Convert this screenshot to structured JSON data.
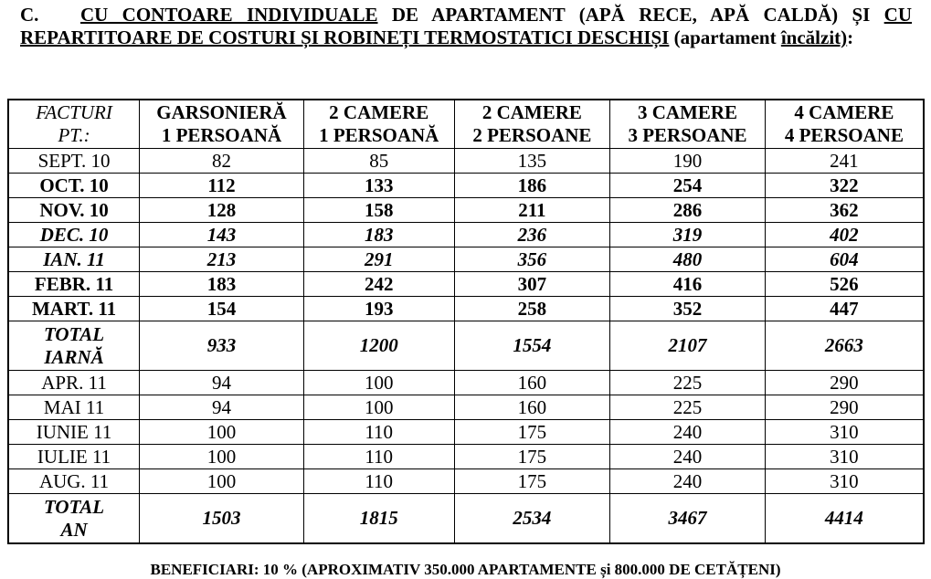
{
  "heading": {
    "label": "C.",
    "part1_underlined": "CU CONTOARE INDIVIDUALE",
    "part2": " DE APARTAMENT (APĂ RECE, APĂ CALDĂ) ȘI ",
    "part3_underlined": "CU REPARTITOARE DE COSTURI ȘI ROBINEȚI TERMOSTATICI DESCHIȘI",
    "part4": " (apartament ",
    "part5_underlined": "încălzit)",
    "part6": ":"
  },
  "table": {
    "headers": [
      [
        "FACTURI",
        "PT.:"
      ],
      [
        "GARSONIERĂ",
        "1 PERSOANĂ"
      ],
      [
        "2 CAMERE",
        "1 PERSOANĂ"
      ],
      [
        "2 CAMERE",
        "2 PERSOANE"
      ],
      [
        "3 CAMERE",
        "3 PERSOANE"
      ],
      [
        "4 CAMERE",
        "4 PERSOANE"
      ]
    ],
    "rows": [
      {
        "style": "normal",
        "label": [
          "SEPT. 10"
        ],
        "values": [
          "82",
          "85",
          "135",
          "190",
          "241"
        ]
      },
      {
        "style": "bold",
        "label": [
          "OCT. 10"
        ],
        "values": [
          "112",
          "133",
          "186",
          "254",
          "322"
        ]
      },
      {
        "style": "bold",
        "label": [
          "NOV. 10"
        ],
        "values": [
          "128",
          "158",
          "211",
          "286",
          "362"
        ]
      },
      {
        "style": "bold-italic",
        "label": [
          "DEC. 10"
        ],
        "values": [
          "143",
          "183",
          "236",
          "319",
          "402"
        ]
      },
      {
        "style": "bold-italic",
        "label": [
          "IAN. 11"
        ],
        "values": [
          "213",
          "291",
          "356",
          "480",
          "604"
        ]
      },
      {
        "style": "bold",
        "label": [
          "FEBR. 11"
        ],
        "values": [
          "183",
          "242",
          "307",
          "416",
          "526"
        ]
      },
      {
        "style": "bold",
        "label": [
          "MART. 11"
        ],
        "values": [
          "154",
          "193",
          "258",
          "352",
          "447"
        ]
      },
      {
        "style": "bold-italic",
        "label": [
          "TOTAL",
          "IARNĂ"
        ],
        "values": [
          "933",
          "1200",
          "1554",
          "2107",
          "2663"
        ]
      },
      {
        "style": "normal",
        "label": [
          "APR. 11"
        ],
        "values": [
          "94",
          "100",
          "160",
          "225",
          "290"
        ]
      },
      {
        "style": "normal",
        "label": [
          "MAI 11"
        ],
        "values": [
          "94",
          "100",
          "160",
          "225",
          "290"
        ]
      },
      {
        "style": "normal",
        "label": [
          "IUNIE 11"
        ],
        "values": [
          "100",
          "110",
          "175",
          "240",
          "310"
        ]
      },
      {
        "style": "normal",
        "label": [
          "IULIE 11"
        ],
        "values": [
          "100",
          "110",
          "175",
          "240",
          "310"
        ]
      },
      {
        "style": "normal",
        "label": [
          "AUG. 11"
        ],
        "values": [
          "100",
          "110",
          "175",
          "240",
          "310"
        ]
      },
      {
        "style": "bold-italic",
        "label": [
          "TOTAL",
          "AN"
        ],
        "values": [
          "1503",
          "1815",
          "2534",
          "3467",
          "4414"
        ]
      }
    ]
  },
  "footer": "BENEFICIARI: 10 % (APROXIMATIV 350.000 APARTAMENTE și 800.000 DE CETĂȚENI)"
}
